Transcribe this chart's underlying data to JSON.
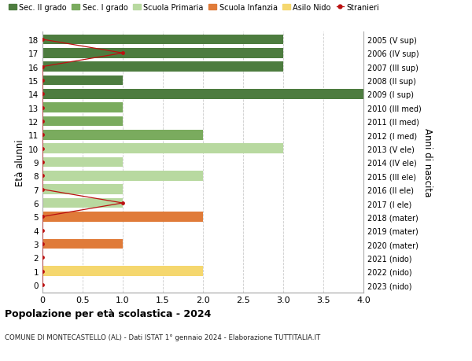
{
  "ages": [
    18,
    17,
    16,
    15,
    14,
    13,
    12,
    11,
    10,
    9,
    8,
    7,
    6,
    5,
    4,
    3,
    2,
    1,
    0
  ],
  "right_labels": [
    "2005 (V sup)",
    "2006 (IV sup)",
    "2007 (III sup)",
    "2008 (II sup)",
    "2009 (I sup)",
    "2010 (III med)",
    "2011 (II med)",
    "2012 (I med)",
    "2013 (V ele)",
    "2014 (IV ele)",
    "2015 (III ele)",
    "2016 (II ele)",
    "2017 (I ele)",
    "2018 (mater)",
    "2019 (mater)",
    "2020 (mater)",
    "2021 (nido)",
    "2022 (nido)",
    "2023 (nido)"
  ],
  "bar_values": [
    3,
    3,
    3,
    1,
    4,
    1,
    1,
    2,
    3,
    1,
    2,
    1,
    1,
    2,
    0,
    1,
    0,
    2,
    0
  ],
  "bar_colors": [
    "#4d7c3f",
    "#4d7c3f",
    "#4d7c3f",
    "#4d7c3f",
    "#4d7c3f",
    "#7aab5e",
    "#7aab5e",
    "#7aab5e",
    "#b8d9a0",
    "#b8d9a0",
    "#b8d9a0",
    "#b8d9a0",
    "#b8d9a0",
    "#e07b39",
    "#e07b39",
    "#e07b39",
    "#f5d76e",
    "#f5d76e",
    "#f5d76e"
  ],
  "stranieri_values": [
    0,
    1,
    0,
    0,
    0,
    0,
    0,
    0,
    0,
    0,
    0,
    0,
    1,
    0,
    0,
    0,
    0,
    0,
    0
  ],
  "stranieri_color": "#bb1111",
  "legend_colors": [
    "#4d7c3f",
    "#7aab5e",
    "#b8d9a0",
    "#e07b39",
    "#f5d76e",
    "#bb1111"
  ],
  "legend_labels": [
    "Sec. II grado",
    "Sec. I grado",
    "Scuola Primaria",
    "Scuola Infanzia",
    "Asilo Nido",
    "Stranieri"
  ],
  "ylabel_left": "Età alunni",
  "ylabel_right": "Anni di nascita",
  "xlim": [
    0,
    4.0
  ],
  "xticks": [
    0,
    0.5,
    1.0,
    1.5,
    2.0,
    2.5,
    3.0,
    3.5,
    4.0
  ],
  "xtick_labels": [
    "0",
    "0.5",
    "1.0",
    "1.5",
    "2.0",
    "2.5",
    "3.0",
    "3.5",
    "4.0"
  ],
  "title": "Popolazione per età scolastica - 2024",
  "subtitle": "COMUNE DI MONTECASTELLO (AL) - Dati ISTAT 1° gennaio 2024 - Elaborazione TUTTITALIA.IT",
  "background_color": "#ffffff",
  "grid_color": "#cccccc"
}
